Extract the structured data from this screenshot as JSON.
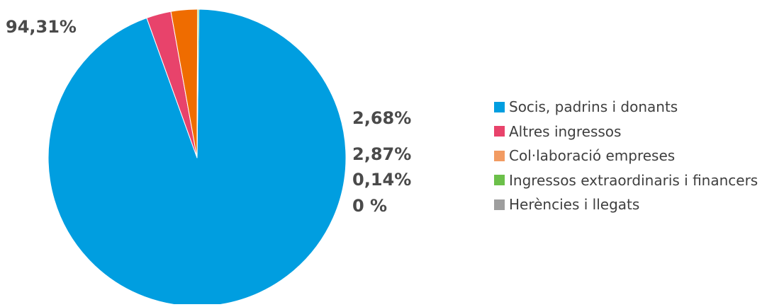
{
  "chart_data": {
    "type": "pie",
    "title": "",
    "legend_position": "right",
    "slices": [
      {
        "label": "Socis, padrins i donants",
        "value": 94.31,
        "display": "94,31%",
        "color": "#009ee0"
      },
      {
        "label": "Altres ingressos",
        "value": 2.68,
        "display": "2,68%",
        "color": "#e8436b"
      },
      {
        "label": "Col·laboració empreses",
        "value": 2.87,
        "display": "2,87%",
        "color": "#ef6c00"
      },
      {
        "label": "Ingressos extraordinaris i financers",
        "value": 0.14,
        "display": "0,14%",
        "color": "#6cc04a"
      },
      {
        "label": "Herències i llegats",
        "value": 0,
        "display": "0 %",
        "color": "#9e9e9e"
      }
    ],
    "legend_colors": [
      "#009ee0",
      "#e8436b",
      "#f29b62",
      "#6cc04a",
      "#9e9e9e"
    ]
  }
}
